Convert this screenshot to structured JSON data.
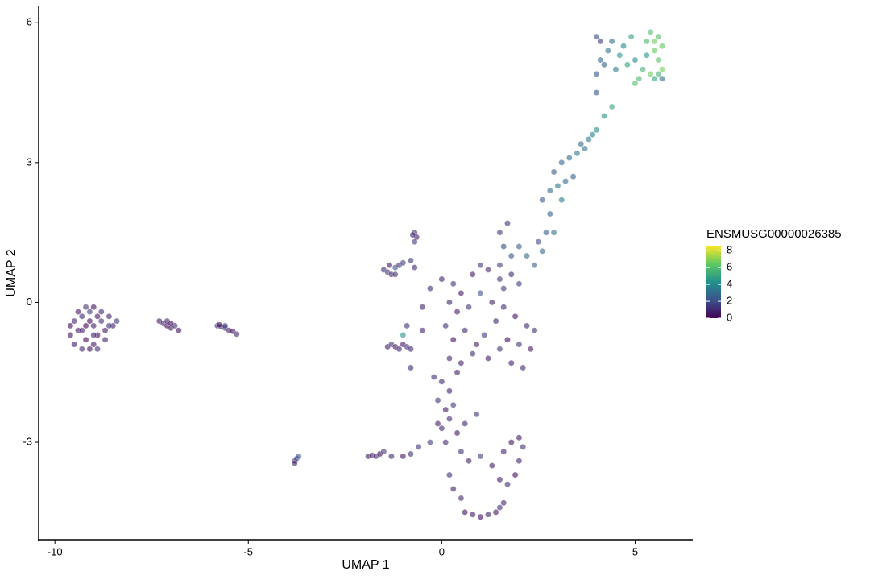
{
  "chart_data": {
    "type": "scatter",
    "x_label": "UMAP 1",
    "y_label": "UMAP 2",
    "legend_title": "ENSMUSG00000026385",
    "xlim": [
      -10.42,
      6.49
    ],
    "ylim": [
      -5.09,
      6.35
    ],
    "xticks": [
      -10,
      -5,
      0,
      5
    ],
    "yticks": [
      -3,
      0,
      3,
      6
    ],
    "colormap": [
      "#440154",
      "#3b528b",
      "#21918c",
      "#5ec962",
      "#fde725"
    ],
    "colorbar": {
      "lim": [
        0,
        8.6
      ],
      "ticks": [
        0,
        2,
        4,
        6,
        8
      ]
    },
    "x": [
      -9.5,
      -9.4,
      -9.3,
      -9.2,
      -9.1,
      -9.0,
      -8.9,
      -8.8,
      -8.7,
      -8.6,
      -9.6,
      -9.5,
      -9.3,
      -9.1,
      -9.0,
      -8.9,
      -9.4,
      -9.2,
      -9.0,
      -8.8,
      -8.5,
      -8.4,
      -9.6,
      -9.3,
      -9.1,
      -8.7,
      -8.6,
      -9.2,
      -8.9,
      -9.0,
      -7.3,
      -7.2,
      -7.1,
      -7.0,
      -6.9,
      -6.8,
      -7.1,
      -7.0,
      -5.8,
      -5.7,
      -5.6,
      -5.5,
      -5.4,
      -5.3,
      -5.75,
      -5.6,
      -3.8,
      -3.75,
      -3.7,
      -3.8,
      -1.9,
      -1.8,
      -1.7,
      -1.6,
      -1.5,
      -1.3,
      -1.0,
      -0.8,
      -0.6,
      -1.5,
      -1.4,
      -1.3,
      -1.2,
      -1.1,
      -1.0,
      -1.35,
      -1.2,
      -0.8,
      -0.7,
      -0.7,
      -0.65,
      -0.7,
      -0.75,
      -1.4,
      -1.3,
      -1.2,
      -1.1,
      -1.0,
      -0.9,
      -0.8,
      -1.0,
      -0.9,
      -0.8,
      0.0,
      0.3,
      -0.3,
      0.5,
      1.0,
      1.2,
      0.8,
      1.5,
      1.8,
      2.0,
      0.2,
      0.4,
      0.7,
      1.0,
      1.3,
      1.6,
      1.9,
      2.2,
      2.4,
      -0.5,
      0.1,
      0.3,
      0.6,
      0.9,
      1.1,
      1.4,
      1.7,
      2.0,
      2.3,
      0.2,
      0.5,
      0.8,
      1.2,
      1.5,
      1.8,
      2.1,
      -0.2,
      0.4,
      -0.5,
      1.6,
      0.0,
      0.2,
      -0.1,
      0.1,
      0.2,
      0.0,
      0.3,
      -0.1,
      0.1,
      0.4,
      0.5,
      0.7,
      1.0,
      1.3,
      1.6,
      1.8,
      2.0,
      1.9,
      1.7,
      2.0,
      2.1,
      1.5,
      0.2,
      0.3,
      0.5,
      0.6,
      0.8,
      1.0,
      1.2,
      1.4,
      1.5,
      1.6,
      0.9,
      0.6,
      -0.3,
      1.5,
      1.7,
      1.6,
      1.8,
      1.5,
      2.0,
      2.2,
      2.4,
      2.6,
      2.7,
      2.5,
      2.9,
      2.8,
      2.6,
      2.8,
      3.0,
      3.2,
      3.1,
      2.9,
      3.1,
      3.3,
      3.4,
      3.5,
      3.6,
      3.8,
      3.9,
      4.0,
      4.2,
      4.4,
      3.7,
      4.0,
      4.1,
      4.0,
      4.1,
      4.3,
      4.4,
      4.6,
      4.8,
      4.7,
      4.9,
      5.0,
      5.2,
      5.3,
      5.4,
      5.5,
      5.6,
      5.7,
      5.6,
      5.4,
      5.5,
      5.7,
      5.6,
      5.3,
      5.1,
      5.0,
      4.5,
      4.2,
      4.0,
      5.5,
      5.7
    ],
    "y": [
      -0.4,
      -0.6,
      -0.3,
      -0.8,
      -0.2,
      -0.5,
      -0.7,
      -0.4,
      -0.6,
      -0.3,
      -0.7,
      -0.9,
      -1.0,
      -1.0,
      -0.9,
      -1.0,
      -0.2,
      -0.1,
      -0.1,
      -0.2,
      -0.5,
      -0.4,
      -0.5,
      -0.6,
      -0.4,
      -0.8,
      -0.5,
      -0.5,
      -0.3,
      -0.7,
      -0.4,
      -0.45,
      -0.5,
      -0.55,
      -0.5,
      -0.6,
      -0.4,
      -0.45,
      -0.5,
      -0.52,
      -0.55,
      -0.6,
      -0.62,
      -0.68,
      -0.48,
      -0.5,
      -3.4,
      -3.35,
      -3.3,
      -3.45,
      -3.3,
      -3.28,
      -3.3,
      -3.25,
      -3.2,
      -3.3,
      -3.3,
      -3.25,
      -3.1,
      0.7,
      0.65,
      0.6,
      0.75,
      0.8,
      0.85,
      0.8,
      0.6,
      0.9,
      0.75,
      1.5,
      1.4,
      1.3,
      1.45,
      -0.95,
      -0.9,
      -0.95,
      -1.0,
      -0.9,
      -0.95,
      -1.0,
      -0.7,
      -0.5,
      -1.4,
      0.5,
      0.4,
      0.3,
      0.2,
      0.8,
      0.7,
      0.6,
      0.5,
      0.6,
      0.4,
      0.0,
      -0.2,
      -0.1,
      0.2,
      0.0,
      -0.1,
      -0.3,
      -0.5,
      -0.6,
      -0.1,
      -0.5,
      -0.8,
      -0.6,
      -0.9,
      -0.7,
      -0.4,
      -0.8,
      -0.9,
      -1.0,
      -1.2,
      -1.3,
      -1.1,
      -1.2,
      -1.0,
      -1.3,
      -1.4,
      -1.6,
      -1.5,
      -0.6,
      0.3,
      -1.7,
      -1.9,
      -2.1,
      -2.3,
      -2.5,
      -2.7,
      -2.2,
      -2.6,
      -3.0,
      -2.8,
      -3.2,
      -3.4,
      -3.3,
      -3.5,
      -3.2,
      -3.0,
      -3.4,
      -3.7,
      -3.9,
      -2.9,
      -3.1,
      -3.8,
      -3.7,
      -4.0,
      -4.2,
      -4.5,
      -4.55,
      -4.6,
      -4.55,
      -4.5,
      -4.4,
      -4.3,
      -2.4,
      -2.6,
      -3.0,
      1.5,
      1.7,
      1.2,
      1.0,
      0.8,
      1.2,
      1.0,
      0.8,
      1.1,
      1.5,
      1.3,
      1.5,
      1.9,
      2.2,
      2.4,
      2.5,
      2.6,
      2.2,
      2.8,
      3.0,
      3.1,
      2.7,
      3.2,
      3.4,
      3.5,
      3.6,
      3.7,
      4.0,
      4.2,
      3.3,
      5.7,
      5.6,
      4.9,
      5.2,
      5.4,
      5.6,
      5.3,
      5.1,
      5.5,
      5.7,
      5.2,
      5.0,
      5.6,
      5.8,
      5.4,
      5.2,
      5.0,
      4.9,
      4.9,
      4.8,
      5.5,
      5.7,
      5.3,
      4.8,
      4.7,
      5.0,
      5.1,
      4.5,
      5.6,
      4.8
    ],
    "values": [
      1,
      0.5,
      1,
      0.3,
      1.5,
      0.8,
      0.2,
      1.2,
      0.5,
      0.9,
      0.4,
      0.6,
      1,
      0.3,
      0.7,
      1.1,
      0.5,
      1.3,
      0.4,
      1.0,
      0.6,
      1.4,
      0.2,
      0.9,
      0.3,
      0.8,
      1.2,
      0.1,
      0.6,
      1.0,
      0.5,
      1,
      0.2,
      0.7,
      1.1,
      0.4,
      0.9,
      0.3,
      1,
      0.5,
      1.3,
      0.8,
      0.4,
      1,
      0.6,
      1.5,
      0.6,
      1.8,
      2.2,
      1,
      0.5,
      0.8,
      1.2,
      0.3,
      1.5,
      1,
      0.4,
      1.2,
      1.4,
      1,
      1.5,
      0.8,
      2,
      1.2,
      1.6,
      0.6,
      1.3,
      1.4,
      1,
      1.2,
      0.6,
      1.5,
      0.9,
      0.8,
      1.2,
      0.5,
      1,
      0.6,
      1.4,
      0.9,
      4.5,
      1.3,
      1,
      0.8,
      1.2,
      1,
      0.5,
      1.5,
      1,
      0.7,
      1.3,
      0.9,
      1.6,
      1,
      0.6,
      1.4,
      2.2,
      0.8,
      1.1,
      0.5,
      1,
      1.3,
      0.9,
      1.2,
      0.4,
      1,
      0.7,
      1.5,
      0.9,
      0.3,
      1.2,
      0.6,
      1,
      0.8,
      1.1,
      0.5,
      1.3,
      0.7,
      1,
      1.2,
      0.6,
      1,
      1.4,
      1,
      0.8,
      1.3,
      0.6,
      1.1,
      0.9,
      1.4,
      0.7,
      1,
      0.5,
      1.2,
      0.8,
      1.5,
      0.6,
      1,
      0.4,
      0.9,
      0.3,
      1.1,
      0.5,
      1.2,
      0.7,
      1.2,
      0.8,
      1,
      0.4,
      0.6,
      0.3,
      0.8,
      0.5,
      1.2,
      0.9,
      1.3,
      0.9,
      1.5,
      1.5,
      1.2,
      1.8,
      2.2,
      1.6,
      2.5,
      2.8,
      2.6,
      3,
      2.3,
      2.0,
      3.2,
      2.7,
      2.5,
      3.1,
      3.4,
      2.9,
      3.6,
      2.4,
      2.8,
      3.0,
      2.6,
      3.3,
      2.9,
      3.5,
      3.8,
      4.2,
      4.5,
      5.0,
      3.2,
      2.0,
      1.5,
      2.3,
      2.8,
      3.2,
      3.0,
      4.5,
      4.8,
      4.0,
      5.0,
      4.2,
      5.5,
      5.8,
      6.0,
      6.5,
      6.2,
      6.8,
      5.6,
      6.6,
      5.0,
      6.4,
      5.9,
      4.5,
      5.8,
      6.0,
      3.5,
      2.6,
      2.2,
      6.7,
      3.0
    ]
  }
}
